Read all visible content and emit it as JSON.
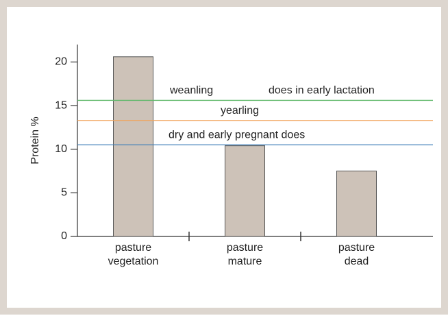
{
  "chart_data": {
    "type": "bar",
    "y_label": "Protein %",
    "categories": [
      [
        "pasture",
        "vegetation"
      ],
      [
        "pasture",
        "mature"
      ],
      [
        "pasture",
        "dead"
      ]
    ],
    "values": [
      20.6,
      10.4,
      7.5
    ],
    "color": "#cdc2b8",
    "ylim": [
      0,
      22
    ],
    "yticks": [
      0,
      5,
      10,
      15,
      20
    ],
    "reference_lines": [
      {
        "value": 15.6,
        "color": "#5fb86a",
        "labels": [
          "weanling",
          "does in early lactation"
        ]
      },
      {
        "value": 13.3,
        "color": "#f0a35a",
        "labels": [
          "yearling"
        ]
      },
      {
        "value": 10.5,
        "color": "#3f7fb8",
        "labels": [
          "dry and early pregnant does"
        ]
      }
    ]
  }
}
